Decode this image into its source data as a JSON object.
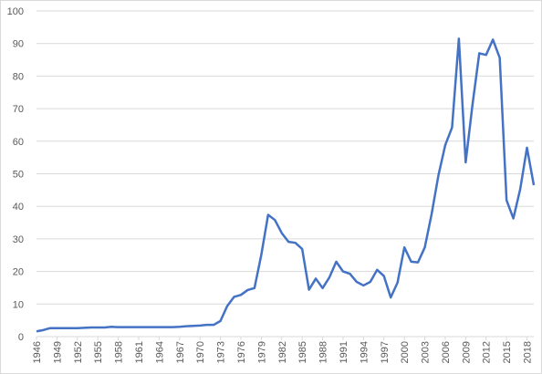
{
  "chart_data": {
    "type": "line",
    "x": [
      1946,
      1947,
      1948,
      1949,
      1950,
      1951,
      1952,
      1953,
      1954,
      1955,
      1956,
      1957,
      1958,
      1959,
      1960,
      1961,
      1962,
      1963,
      1964,
      1965,
      1966,
      1967,
      1968,
      1969,
      1970,
      1971,
      1972,
      1973,
      1974,
      1975,
      1976,
      1977,
      1978,
      1979,
      1980,
      1981,
      1982,
      1983,
      1984,
      1985,
      1986,
      1987,
      1988,
      1989,
      1990,
      1991,
      1992,
      1993,
      1994,
      1995,
      1996,
      1997,
      1998,
      1999,
      2000,
      2001,
      2002,
      2003,
      2004,
      2005,
      2006,
      2007,
      2008,
      2009,
      2010,
      2011,
      2012,
      2013,
      2014,
      2015,
      2016,
      2017,
      2018,
      2019
    ],
    "values": [
      1.6,
      2.0,
      2.6,
      2.6,
      2.6,
      2.6,
      2.6,
      2.7,
      2.8,
      2.8,
      2.8,
      3.0,
      2.9,
      2.9,
      2.9,
      2.9,
      2.9,
      2.9,
      2.9,
      2.9,
      2.9,
      3.0,
      3.2,
      3.3,
      3.4,
      3.6,
      3.6,
      4.8,
      9.4,
      12.2,
      12.8,
      14.3,
      14.9,
      25.1,
      37.4,
      35.8,
      31.8,
      29.1,
      28.8,
      26.9,
      14.4,
      17.8,
      14.9,
      18.2,
      23.0,
      20.0,
      19.3,
      16.8,
      15.7,
      16.8,
      20.5,
      18.6,
      12.0,
      16.6,
      27.4,
      23.0,
      22.8,
      27.4,
      37.6,
      49.5,
      58.8,
      64.2,
      91.5,
      53.5,
      71.2,
      87.0,
      86.5,
      91.2,
      85.6,
      41.9,
      36.3,
      45.2,
      58.0,
      46.5
    ],
    "color": "#4472c4",
    "xlim": [
      1946,
      2019
    ],
    "xticks": [
      1946,
      1949,
      1952,
      1955,
      1958,
      1961,
      1964,
      1967,
      1970,
      1973,
      1976,
      1979,
      1982,
      1985,
      1988,
      1991,
      1994,
      1997,
      2000,
      2003,
      2006,
      2009,
      2012,
      2015,
      2018
    ],
    "ylim": [
      0,
      100
    ],
    "yticks": [
      0,
      10,
      20,
      30,
      40,
      50,
      60,
      70,
      80,
      90,
      100
    ],
    "grid": true
  }
}
